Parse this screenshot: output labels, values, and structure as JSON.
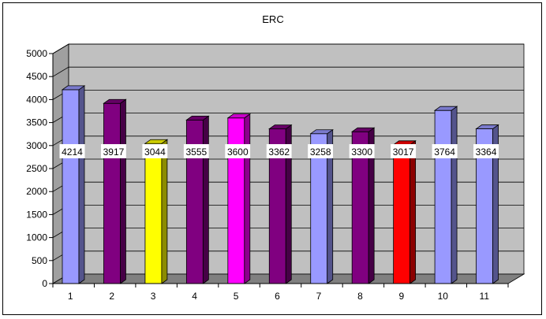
{
  "chart_data": {
    "type": "bar",
    "title": "ERC",
    "xlabel": "",
    "ylabel": "",
    "categories": [
      "1",
      "2",
      "3",
      "4",
      "5",
      "6",
      "7",
      "8",
      "9",
      "10",
      "11"
    ],
    "values": [
      4214,
      3917,
      3044,
      3555,
      3600,
      3362,
      3258,
      3300,
      3017,
      3764,
      3364
    ],
    "colors": [
      "#9999FF",
      "#800080",
      "#FFFF00",
      "#800080",
      "#FF00FF",
      "#800080",
      "#9999FF",
      "#800080",
      "#FF0000",
      "#9999FF",
      "#9999FF"
    ],
    "ylim": [
      0,
      5000
    ],
    "yticks": [
      0,
      500,
      1000,
      1500,
      2000,
      2500,
      3000,
      3500,
      4000,
      4500,
      5000
    ],
    "grid": true,
    "legend": "none",
    "wall_color": "#C0C0C0",
    "floor_color": "#808080"
  }
}
